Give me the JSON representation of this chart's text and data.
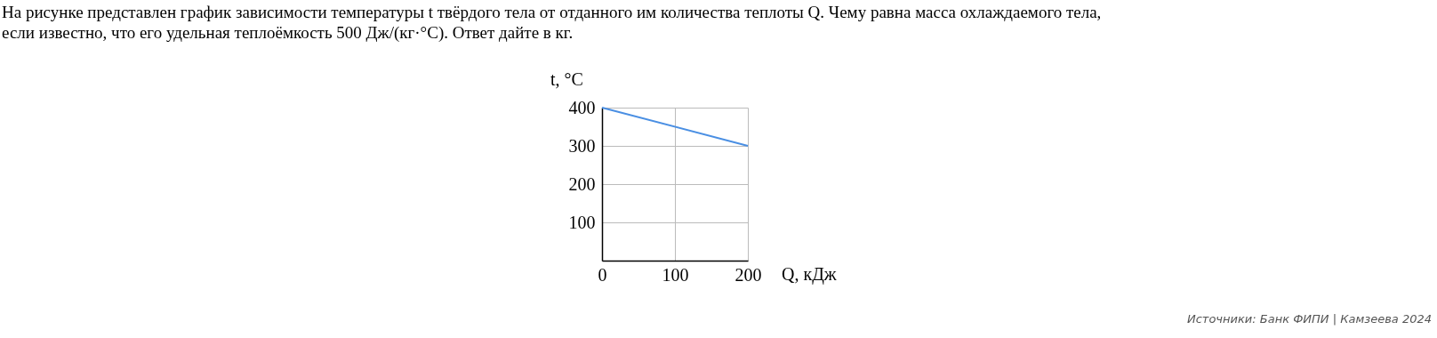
{
  "chart_data": {
    "type": "line",
    "title": [
      "На рисунке представлен график зависимости температуры t твёрдого тела от отданного им количества теплоты Q. Чему равна масса охлаждаемого тела,",
      "если известно, что его удельная теплоёмкость 500 Дж/(кг·°C). Ответ дайте в кг."
    ],
    "xlabel": "Q, кДж",
    "ylabel": "t, °C",
    "x": [
      0,
      200
    ],
    "series": [
      {
        "color": "#4a8fe3",
        "values": [
          400,
          300
        ]
      }
    ],
    "xlim": [
      0,
      200
    ],
    "ylim": [
      0,
      400
    ],
    "xticks": [
      0,
      100,
      200
    ],
    "yticks": [
      {
        "value": 0,
        "label": null
      },
      100,
      200,
      300,
      400
    ],
    "grid": true,
    "marker": "none",
    "line_style": "solid",
    "annotations": [
      "Источники: Банк ФИПИ | Камзеева 2024"
    ]
  }
}
